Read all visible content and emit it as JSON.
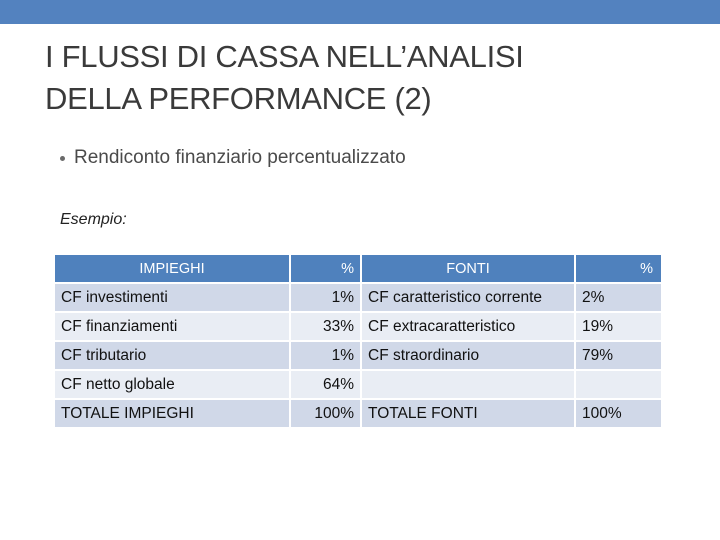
{
  "slide": {
    "title_line1": "I FLUSSI DI CASSA NELL’ANALISI",
    "title_line2": "DELLA PERFORMANCE (2)",
    "bullet": "Rendiconto finanziario percentualizzato",
    "example_label": "Esempio:"
  },
  "colors": {
    "top_bar": "#5382bf",
    "header_fill": "#4f81bd",
    "row_dark": "#d0d8e8",
    "row_light": "#e9edf4"
  },
  "table": {
    "headers": [
      "IMPIEGHI",
      "%",
      "FONTI",
      "%"
    ],
    "rows": [
      [
        "CF investimenti",
        "1%",
        "CF caratteristico corrente",
        "2%"
      ],
      [
        "CF finanziamenti",
        "33%",
        "CF extracaratteristico",
        "19%"
      ],
      [
        "CF tributario",
        "1%",
        "CF straordinario",
        "79%"
      ],
      [
        "CF netto globale",
        "64%",
        "",
        ""
      ],
      [
        "TOTALE IMPIEGHI",
        "100%",
        "TOTALE FONTI",
        "100%"
      ]
    ]
  }
}
